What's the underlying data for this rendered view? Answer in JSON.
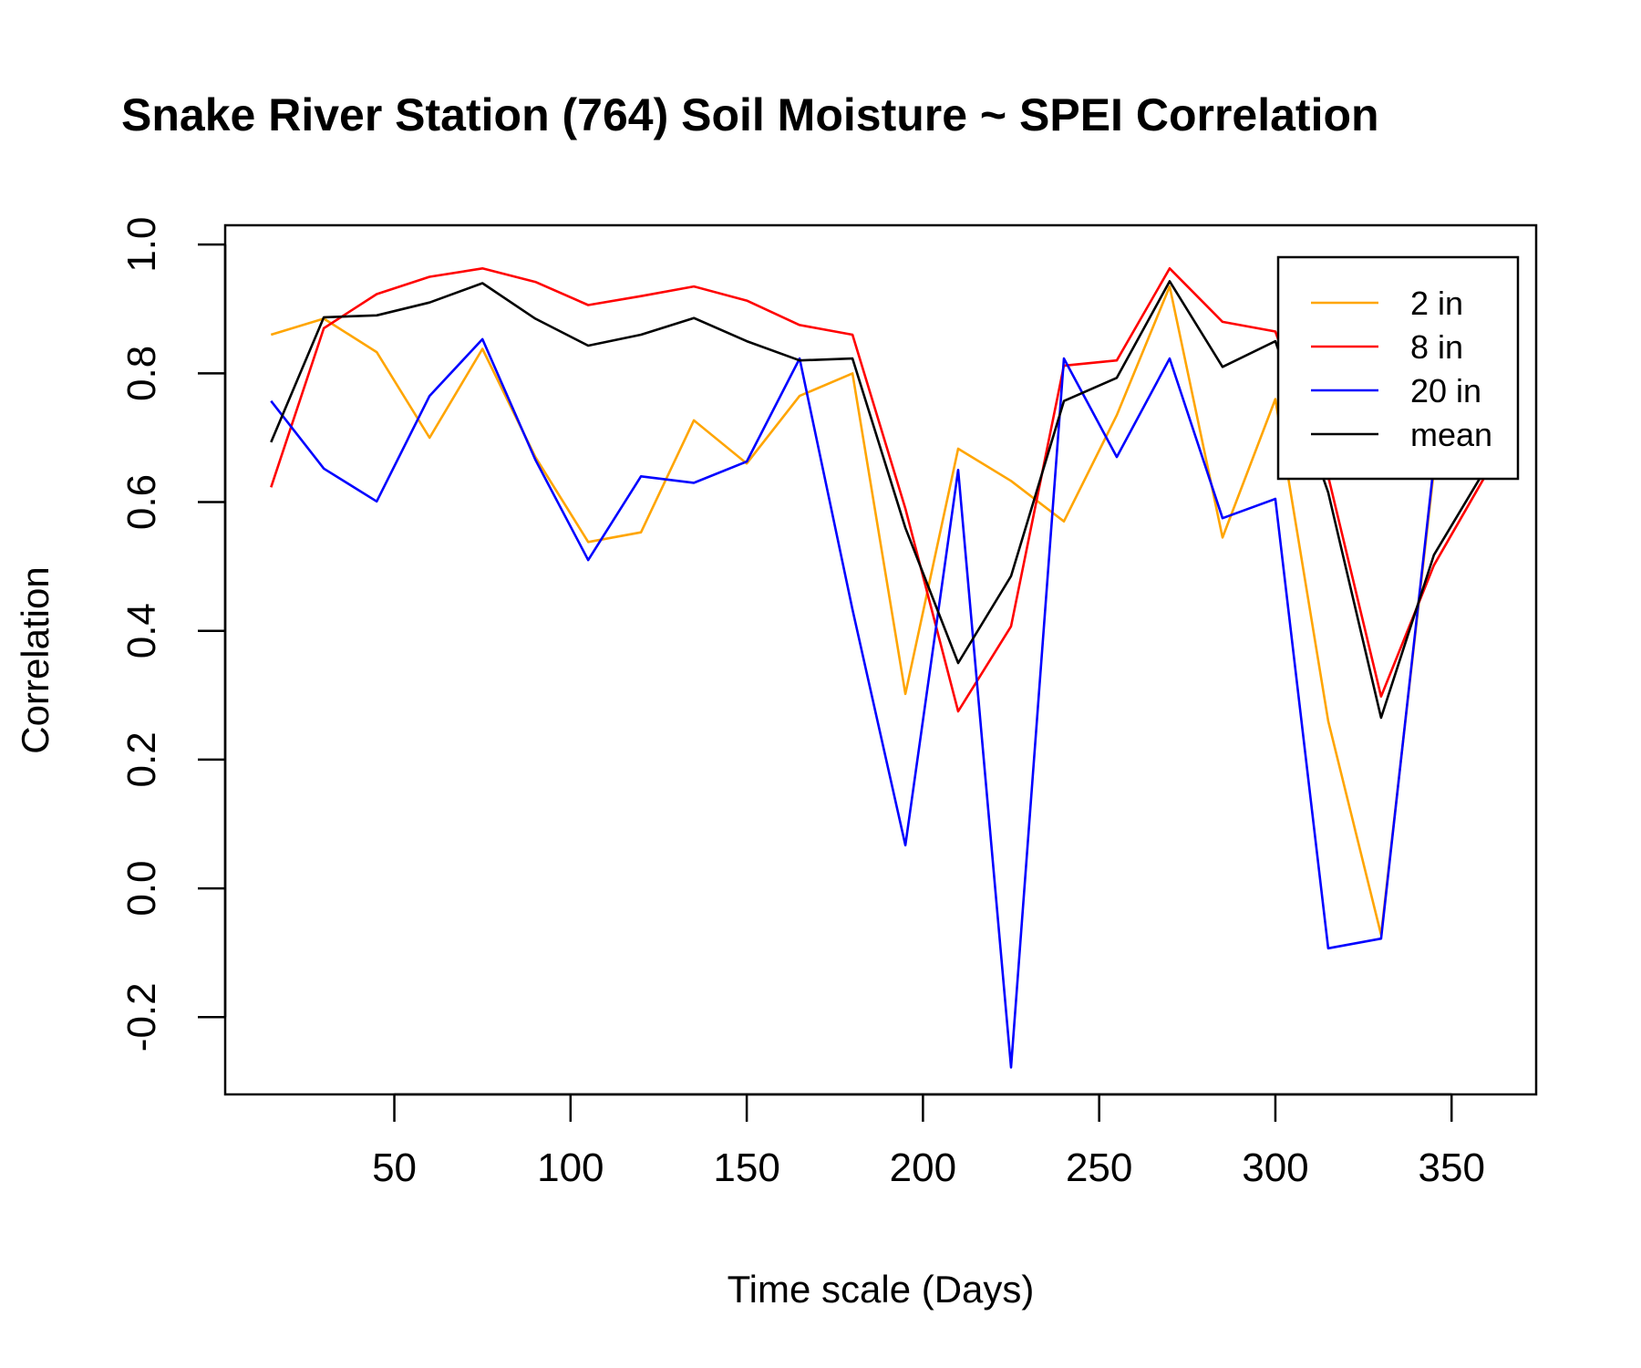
{
  "chart_data": {
    "type": "line",
    "title": "Snake River Station (764) Soil Moisture ~ SPEI Correlation",
    "xlabel": "Time scale (Days)",
    "ylabel": "Correlation",
    "xlim": [
      2,
      374
    ],
    "ylim": [
      -0.32,
      1.03
    ],
    "xticks": [
      50,
      100,
      150,
      200,
      250,
      300,
      350
    ],
    "xtick_labels": [
      "50",
      "100",
      "150",
      "200",
      "250",
      "300",
      "350"
    ],
    "yticks": [
      -0.2,
      0.0,
      0.2,
      0.4,
      0.6,
      0.8,
      1.0
    ],
    "ytick_labels": [
      "-0.2",
      "0.0",
      "0.2",
      "0.4",
      "0.6",
      "0.8",
      "1.0"
    ],
    "grid": false,
    "legend_position": "top-right",
    "x": [
      15,
      30,
      45,
      60,
      75,
      90,
      105,
      120,
      135,
      150,
      165,
      180,
      195,
      210,
      225,
      240,
      255,
      270,
      285,
      300,
      315,
      330,
      345,
      360
    ],
    "series": [
      {
        "name": "2 in",
        "color": "#FFA500",
        "values": [
          0.86,
          0.885,
          0.833,
          0.7,
          0.838,
          0.67,
          0.538,
          0.553,
          0.727,
          0.66,
          0.765,
          0.8,
          0.302,
          0.683,
          0.633,
          0.57,
          0.735,
          0.935,
          0.545,
          0.76,
          0.26,
          -0.072,
          0.65,
          0.66
        ]
      },
      {
        "name": "8 in",
        "color": "#FF0000",
        "values": [
          0.623,
          0.87,
          0.923,
          0.95,
          0.963,
          0.942,
          0.906,
          0.92,
          0.935,
          0.913,
          0.875,
          0.86,
          0.59,
          0.275,
          0.407,
          0.812,
          0.82,
          0.963,
          0.88,
          0.865,
          0.64,
          0.298,
          0.502,
          0.645
        ]
      },
      {
        "name": "20 in",
        "color": "#0000FF",
        "values": [
          0.757,
          0.652,
          0.601,
          0.765,
          0.853,
          0.666,
          0.51,
          0.64,
          0.63,
          0.663,
          0.823,
          0.433,
          0.067,
          0.65,
          -0.278,
          0.823,
          0.67,
          0.823,
          0.575,
          0.605,
          -0.093,
          -0.078,
          0.66,
          0.66
        ]
      },
      {
        "name": "mean",
        "color": "#000000",
        "values": [
          0.693,
          0.887,
          0.89,
          0.91,
          0.94,
          0.885,
          0.843,
          0.86,
          0.886,
          0.85,
          0.82,
          0.823,
          0.56,
          0.35,
          0.485,
          0.757,
          0.793,
          0.943,
          0.81,
          0.85,
          0.615,
          0.265,
          0.518,
          0.655
        ]
      }
    ]
  }
}
